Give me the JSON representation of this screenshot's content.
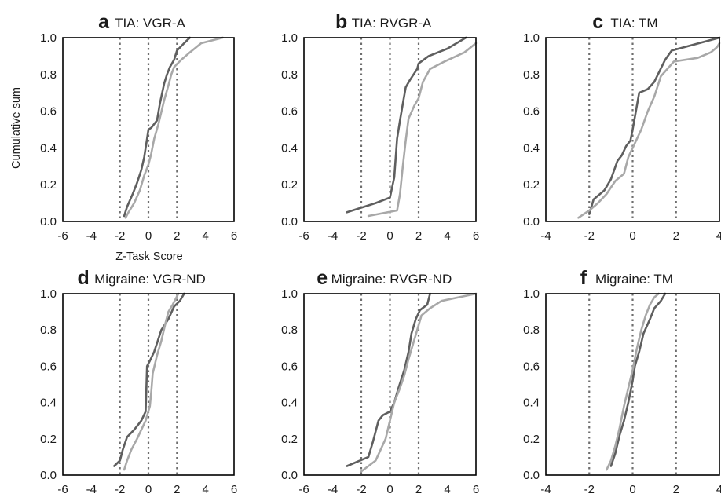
{
  "colors": {
    "dark": "#5f5f5f",
    "light": "#a8a8a8",
    "ref": "#6e6e6e",
    "frame": "#000000"
  },
  "axes": {
    "ylabel": "Cumulative sum",
    "xlabel": "Z-Task Score",
    "yticks": [
      "0.0",
      "0.2",
      "0.4",
      "0.6",
      "0.8",
      "1.0"
    ]
  },
  "chart_data": [
    {
      "type": "line",
      "letter": "a",
      "title": "TIA: VGR-A",
      "xlim": [
        -6,
        6
      ],
      "xticks": [
        -6,
        -4,
        -2,
        0,
        2,
        4,
        6
      ],
      "ylim": [
        0,
        1
      ],
      "ref_lines": [
        -2,
        0,
        2
      ],
      "series": [
        {
          "color": "dark",
          "points": [
            [
              -1.7,
              0.03
            ],
            [
              -1.5,
              0.08
            ],
            [
              -1.1,
              0.15
            ],
            [
              -0.8,
              0.21
            ],
            [
              -0.5,
              0.28
            ],
            [
              -0.3,
              0.35
            ],
            [
              -0.1,
              0.45
            ],
            [
              0.0,
              0.5
            ],
            [
              0.2,
              0.51
            ],
            [
              0.6,
              0.55
            ],
            [
              0.8,
              0.64
            ],
            [
              1.1,
              0.75
            ],
            [
              1.3,
              0.8
            ],
            [
              1.5,
              0.84
            ],
            [
              1.8,
              0.88
            ],
            [
              2.0,
              0.93
            ],
            [
              2.5,
              0.97
            ],
            [
              2.9,
              1.0
            ]
          ]
        },
        {
          "color": "light",
          "points": [
            [
              -1.6,
              0.02
            ],
            [
              -1.4,
              0.05
            ],
            [
              -1.0,
              0.1
            ],
            [
              -0.6,
              0.17
            ],
            [
              -0.3,
              0.25
            ],
            [
              0.0,
              0.31
            ],
            [
              0.2,
              0.37
            ],
            [
              0.4,
              0.45
            ],
            [
              0.7,
              0.53
            ],
            [
              1.1,
              0.66
            ],
            [
              1.4,
              0.74
            ],
            [
              1.6,
              0.8
            ],
            [
              1.8,
              0.84
            ],
            [
              2.3,
              0.88
            ],
            [
              2.9,
              0.92
            ],
            [
              3.7,
              0.97
            ],
            [
              5.2,
              1.0
            ]
          ]
        }
      ]
    },
    {
      "type": "line",
      "letter": "b",
      "title": "TIA: RVGR-A",
      "xlim": [
        -6,
        6
      ],
      "xticks": [
        -6,
        -4,
        -2,
        0,
        2,
        4,
        6
      ],
      "ylim": [
        0,
        1
      ],
      "ref_lines": [
        -2,
        0,
        2
      ],
      "series": [
        {
          "color": "dark",
          "points": [
            [
              -3.0,
              0.05
            ],
            [
              -1.0,
              0.1
            ],
            [
              0.0,
              0.13
            ],
            [
              0.3,
              0.24
            ],
            [
              0.5,
              0.45
            ],
            [
              0.7,
              0.55
            ],
            [
              0.9,
              0.64
            ],
            [
              1.1,
              0.73
            ],
            [
              1.4,
              0.77
            ],
            [
              1.9,
              0.83
            ],
            [
              2.0,
              0.86
            ],
            [
              2.7,
              0.9
            ],
            [
              4.0,
              0.94
            ],
            [
              5.3,
              1.0
            ]
          ]
        },
        {
          "color": "light",
          "points": [
            [
              -1.5,
              0.03
            ],
            [
              0.5,
              0.06
            ],
            [
              0.7,
              0.15
            ],
            [
              0.9,
              0.3
            ],
            [
              1.1,
              0.44
            ],
            [
              1.3,
              0.56
            ],
            [
              1.7,
              0.63
            ],
            [
              2.0,
              0.67
            ],
            [
              2.3,
              0.76
            ],
            [
              2.8,
              0.83
            ],
            [
              3.8,
              0.87
            ],
            [
              5.2,
              0.92
            ],
            [
              6.0,
              0.97
            ]
          ]
        }
      ]
    },
    {
      "type": "line",
      "letter": "c",
      "title": "TIA: TM",
      "xlim": [
        -4,
        4
      ],
      "xticks": [
        -4,
        -2,
        0,
        2,
        4
      ],
      "ylim": [
        0,
        1
      ],
      "ref_lines": [
        -2,
        0,
        2
      ],
      "series": [
        {
          "color": "dark",
          "points": [
            [
              -2.0,
              0.04
            ],
            [
              -1.8,
              0.12
            ],
            [
              -1.3,
              0.17
            ],
            [
              -1.0,
              0.23
            ],
            [
              -0.7,
              0.33
            ],
            [
              -0.5,
              0.36
            ],
            [
              -0.3,
              0.41
            ],
            [
              -0.1,
              0.44
            ],
            [
              0.0,
              0.5
            ],
            [
              0.3,
              0.7
            ],
            [
              0.7,
              0.72
            ],
            [
              1.0,
              0.76
            ],
            [
              1.5,
              0.88
            ],
            [
              1.8,
              0.93
            ],
            [
              4.0,
              1.0
            ]
          ]
        },
        {
          "color": "light",
          "points": [
            [
              -2.5,
              0.02
            ],
            [
              -2.0,
              0.06
            ],
            [
              -1.6,
              0.1
            ],
            [
              -1.2,
              0.15
            ],
            [
              -0.8,
              0.22
            ],
            [
              -0.4,
              0.26
            ],
            [
              -0.2,
              0.35
            ],
            [
              0.0,
              0.4
            ],
            [
              0.4,
              0.5
            ],
            [
              0.7,
              0.6
            ],
            [
              1.0,
              0.68
            ],
            [
              1.3,
              0.79
            ],
            [
              1.6,
              0.83
            ],
            [
              1.9,
              0.87
            ],
            [
              3.0,
              0.89
            ],
            [
              3.6,
              0.92
            ],
            [
              3.9,
              0.95
            ],
            [
              4.0,
              0.97
            ]
          ]
        }
      ]
    },
    {
      "type": "line",
      "letter": "d",
      "title": "Migraine: VGR-ND",
      "xlim": [
        -6,
        6
      ],
      "xticks": [
        -6,
        -4,
        -2,
        0,
        2,
        4,
        6
      ],
      "ylim": [
        0,
        1
      ],
      "ref_lines": [
        -2,
        0,
        2
      ],
      "series": [
        {
          "color": "dark",
          "points": [
            [
              -2.4,
              0.05
            ],
            [
              -2.0,
              0.08
            ],
            [
              -1.8,
              0.14
            ],
            [
              -1.5,
              0.21
            ],
            [
              -1.0,
              0.25
            ],
            [
              -0.5,
              0.3
            ],
            [
              -0.2,
              0.35
            ],
            [
              -0.1,
              0.6
            ],
            [
              0.1,
              0.63
            ],
            [
              0.4,
              0.68
            ],
            [
              0.9,
              0.8
            ],
            [
              1.4,
              0.86
            ],
            [
              1.8,
              0.93
            ],
            [
              2.2,
              0.96
            ],
            [
              2.5,
              1.0
            ]
          ]
        },
        {
          "color": "light",
          "points": [
            [
              -1.7,
              0.03
            ],
            [
              -1.5,
              0.08
            ],
            [
              -1.2,
              0.14
            ],
            [
              -0.8,
              0.2
            ],
            [
              -0.5,
              0.25
            ],
            [
              -0.2,
              0.3
            ],
            [
              0.1,
              0.38
            ],
            [
              0.2,
              0.46
            ],
            [
              0.3,
              0.56
            ],
            [
              0.6,
              0.66
            ],
            [
              0.9,
              0.74
            ],
            [
              1.2,
              0.84
            ],
            [
              1.4,
              0.9
            ],
            [
              1.7,
              0.94
            ],
            [
              2.1,
              1.0
            ]
          ]
        }
      ]
    },
    {
      "type": "line",
      "letter": "e",
      "title": "Migraine: RVGR-ND",
      "xlim": [
        -6,
        6
      ],
      "xticks": [
        -6,
        -4,
        -2,
        0,
        2,
        4,
        6
      ],
      "ylim": [
        0,
        1
      ],
      "ref_lines": [
        -2,
        0,
        2
      ],
      "series": [
        {
          "color": "dark",
          "points": [
            [
              -3.0,
              0.05
            ],
            [
              -1.5,
              0.1
            ],
            [
              -1.2,
              0.18
            ],
            [
              -0.8,
              0.3
            ],
            [
              -0.5,
              0.33
            ],
            [
              0.0,
              0.35
            ],
            [
              0.3,
              0.4
            ],
            [
              0.6,
              0.48
            ],
            [
              1.0,
              0.58
            ],
            [
              1.3,
              0.68
            ],
            [
              1.5,
              0.78
            ],
            [
              1.8,
              0.86
            ],
            [
              2.1,
              0.91
            ],
            [
              2.6,
              0.94
            ],
            [
              2.8,
              1.0
            ]
          ]
        },
        {
          "color": "light",
          "points": [
            [
              -2.0,
              0.02
            ],
            [
              -1.0,
              0.08
            ],
            [
              -0.3,
              0.2
            ],
            [
              0.3,
              0.4
            ],
            [
              0.7,
              0.48
            ],
            [
              1.0,
              0.55
            ],
            [
              1.3,
              0.64
            ],
            [
              1.6,
              0.72
            ],
            [
              1.9,
              0.8
            ],
            [
              2.2,
              0.88
            ],
            [
              2.8,
              0.92
            ],
            [
              3.6,
              0.96
            ],
            [
              6.0,
              1.0
            ]
          ]
        }
      ]
    },
    {
      "type": "line",
      "letter": "f",
      "title": "Migraine: TM",
      "xlim": [
        -4,
        4
      ],
      "xticks": [
        -4,
        -2,
        0,
        2,
        4
      ],
      "ylim": [
        0,
        1
      ],
      "ref_lines": [
        -2,
        0,
        2
      ],
      "series": [
        {
          "color": "dark",
          "points": [
            [
              -1.0,
              0.05
            ],
            [
              -0.8,
              0.12
            ],
            [
              -0.6,
              0.22
            ],
            [
              -0.4,
              0.3
            ],
            [
              -0.2,
              0.4
            ],
            [
              0.0,
              0.52
            ],
            [
              0.1,
              0.6
            ],
            [
              0.3,
              0.68
            ],
            [
              0.5,
              0.78
            ],
            [
              0.8,
              0.86
            ],
            [
              1.0,
              0.92
            ],
            [
              1.3,
              0.96
            ],
            [
              1.5,
              1.0
            ]
          ]
        },
        {
          "color": "light",
          "points": [
            [
              -1.2,
              0.03
            ],
            [
              -1.0,
              0.08
            ],
            [
              -0.8,
              0.16
            ],
            [
              -0.6,
              0.26
            ],
            [
              -0.4,
              0.38
            ],
            [
              -0.2,
              0.48
            ],
            [
              0.0,
              0.58
            ],
            [
              0.2,
              0.7
            ],
            [
              0.4,
              0.8
            ],
            [
              0.6,
              0.88
            ],
            [
              0.8,
              0.94
            ],
            [
              1.0,
              0.98
            ],
            [
              1.2,
              1.0
            ]
          ]
        }
      ]
    }
  ]
}
